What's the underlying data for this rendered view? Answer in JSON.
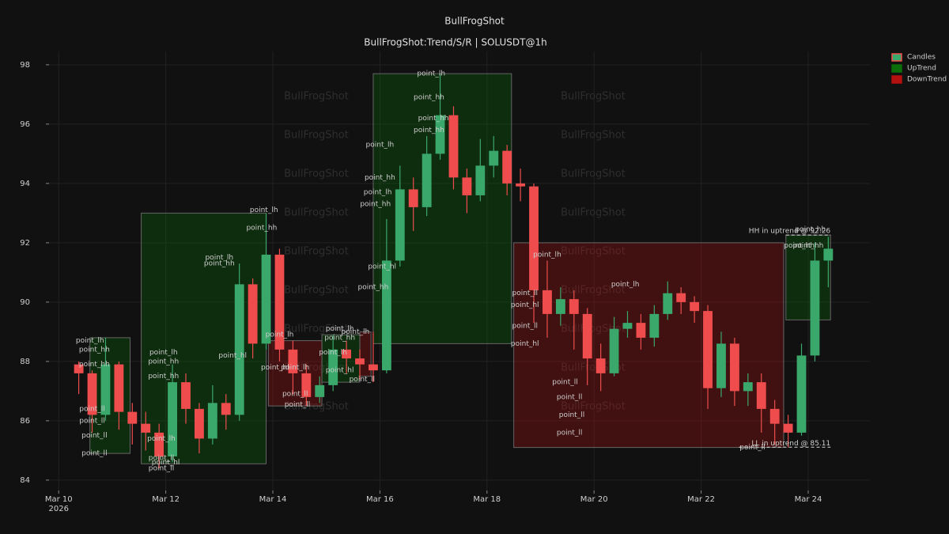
{
  "chart_data": {
    "type": "candlestick",
    "title": "BullFrogShot",
    "subtitle": "BullFrogShot:Trend/S/R | SOLUSDT@1h",
    "watermark": "BullFrogShot",
    "legend_position": "upper right",
    "grid": true,
    "xlim": [
      "2026-03-09T19:40",
      "2026-03-25T03:40"
    ],
    "ylim": [
      83.65,
      98.45
    ],
    "yticks": [
      84,
      86,
      88,
      90,
      92,
      94,
      96,
      98
    ],
    "xticks": [
      {
        "value": "2026-03-10T00:00",
        "label": "Mar 10\n2026"
      },
      {
        "value": "2026-03-12T00:00",
        "label": "Mar 12"
      },
      {
        "value": "2026-03-14T00:00",
        "label": "Mar 14"
      },
      {
        "value": "2026-03-16T00:00",
        "label": "Mar 16"
      },
      {
        "value": "2026-03-18T00:00",
        "label": "Mar 18"
      },
      {
        "value": "2026-03-20T00:00",
        "label": "Mar 20"
      },
      {
        "value": "2026-03-22T00:00",
        "label": "Mar 22"
      },
      {
        "value": "2026-03-24T00:00",
        "label": "Mar 24"
      }
    ],
    "candles": {
      "name": "Candles",
      "up_color": "#3aa86b",
      "down_color": "#ef4d4d",
      "x": [
        "2026-03-10T06:00",
        "2026-03-10T12:00",
        "2026-03-10T18:00",
        "2026-03-11T00:00",
        "2026-03-11T06:00",
        "2026-03-11T12:00",
        "2026-03-11T18:00",
        "2026-03-12T00:00",
        "2026-03-12T06:00",
        "2026-03-12T12:00",
        "2026-03-12T18:00",
        "2026-03-13T00:00",
        "2026-03-13T06:00",
        "2026-03-13T12:00",
        "2026-03-13T18:00",
        "2026-03-14T00:00",
        "2026-03-14T06:00",
        "2026-03-14T12:00",
        "2026-03-14T18:00",
        "2026-03-15T00:00",
        "2026-03-15T06:00",
        "2026-03-15T12:00",
        "2026-03-15T18:00",
        "2026-03-16T00:00",
        "2026-03-16T06:00",
        "2026-03-16T12:00",
        "2026-03-16T18:00",
        "2026-03-17T00:00",
        "2026-03-17T06:00",
        "2026-03-17T12:00",
        "2026-03-17T18:00",
        "2026-03-18T00:00",
        "2026-03-18T06:00",
        "2026-03-18T12:00",
        "2026-03-18T18:00",
        "2026-03-19T00:00",
        "2026-03-19T06:00",
        "2026-03-19T12:00",
        "2026-03-19T18:00",
        "2026-03-20T00:00",
        "2026-03-20T06:00",
        "2026-03-20T12:00",
        "2026-03-20T18:00",
        "2026-03-21T00:00",
        "2026-03-21T06:00",
        "2026-03-21T12:00",
        "2026-03-21T18:00",
        "2026-03-22T00:00",
        "2026-03-22T06:00",
        "2026-03-22T12:00",
        "2026-03-22T18:00",
        "2026-03-23T00:00",
        "2026-03-23T06:00",
        "2026-03-23T12:00",
        "2026-03-23T18:00",
        "2026-03-24T00:00",
        "2026-03-24T06:00"
      ],
      "open": [
        87.9,
        87.6,
        86.2,
        87.9,
        86.3,
        85.9,
        85.6,
        84.8,
        87.3,
        86.4,
        85.4,
        86.6,
        86.2,
        90.6,
        88.6,
        91.6,
        88.4,
        87.6,
        86.8,
        87.2,
        88.4,
        88.1,
        87.9,
        87.7,
        91.4,
        93.8,
        93.2,
        95.0,
        96.3,
        94.2,
        93.6,
        94.6,
        95.1,
        94.0,
        93.9,
        90.4,
        89.6,
        90.1,
        89.6,
        88.1,
        87.6,
        89.1,
        89.3,
        88.8,
        89.6,
        90.3,
        90.0,
        89.7,
        87.1,
        88.6,
        87.0,
        87.3,
        86.4,
        85.9,
        85.6,
        88.2,
        91.4
      ],
      "high": [
        88.0,
        87.7,
        88.8,
        88.0,
        86.6,
        86.3,
        85.9,
        87.9,
        87.6,
        86.6,
        87.2,
        86.9,
        91.3,
        90.8,
        93.0,
        91.8,
        88.7,
        87.9,
        87.5,
        88.9,
        88.7,
        88.4,
        89.0,
        92.8,
        94.6,
        94.2,
        95.6,
        97.7,
        96.6,
        94.5,
        95.5,
        95.6,
        95.3,
        94.5,
        94.0,
        91.4,
        90.5,
        90.4,
        89.8,
        88.6,
        89.5,
        89.7,
        89.6,
        89.9,
        90.7,
        90.5,
        90.2,
        89.9,
        89.0,
        88.8,
        87.6,
        87.6,
        86.7,
        86.2,
        88.6,
        92.0,
        92.2
      ],
      "low": [
        86.9,
        85.6,
        86.0,
        85.7,
        85.2,
        85.0,
        84.4,
        84.6,
        85.9,
        84.9,
        85.2,
        85.7,
        86.0,
        88.1,
        88.4,
        88.0,
        86.9,
        86.5,
        86.6,
        87.0,
        87.6,
        87.4,
        87.3,
        87.6,
        91.2,
        92.4,
        92.9,
        94.8,
        93.8,
        93.0,
        93.4,
        94.2,
        93.6,
        93.4,
        89.3,
        88.8,
        89.2,
        88.4,
        87.2,
        87.0,
        87.5,
        88.8,
        88.4,
        88.5,
        89.4,
        89.6,
        89.3,
        86.4,
        86.8,
        86.5,
        86.5,
        85.6,
        85.2,
        85.1,
        85.5,
        88.0,
        90.5
      ],
      "close": [
        87.6,
        86.2,
        87.9,
        86.3,
        85.9,
        85.6,
        84.8,
        87.3,
        86.4,
        85.4,
        86.6,
        86.2,
        90.6,
        88.6,
        91.6,
        88.4,
        87.6,
        86.8,
        87.2,
        88.4,
        88.1,
        87.9,
        87.7,
        91.4,
        93.8,
        93.2,
        95.0,
        96.3,
        94.2,
        93.6,
        94.6,
        95.1,
        94.0,
        93.9,
        90.4,
        89.6,
        90.1,
        89.6,
        88.1,
        87.6,
        89.1,
        89.3,
        88.8,
        89.6,
        90.3,
        90.0,
        89.7,
        87.1,
        88.6,
        87.0,
        87.3,
        86.4,
        85.9,
        85.6,
        88.2,
        91.4,
        91.8
      ]
    },
    "zone_series": [
      {
        "name": "UpTrend",
        "color": "#0b6e0b",
        "zones": [
          [
            "2026-03-10T14:00",
            "2026-03-11T08:00",
            84.9,
            88.8
          ],
          [
            "2026-03-11T13:00",
            "2026-03-13T21:00",
            84.55,
            93.0
          ],
          [
            "2026-03-14T22:00",
            "2026-03-15T15:00",
            87.3,
            88.9
          ],
          [
            "2026-03-15T21:00",
            "2026-03-18T11:00",
            88.6,
            97.7
          ],
          [
            "2026-03-23T14:00",
            "2026-03-24T10:00",
            89.4,
            92.26
          ]
        ]
      },
      {
        "name": "DownTrend",
        "color": "#b31010",
        "zones": [
          [
            "2026-03-13T22:00",
            "2026-03-14T22:00",
            86.5,
            88.7
          ],
          [
            "2026-03-15T15:00",
            "2026-03-15T20:00",
            87.5,
            89.0
          ],
          [
            "2026-03-18T12:00",
            "2026-03-23T13:00",
            85.1,
            92.0
          ]
        ]
      }
    ],
    "levels": [
      {
        "text": "HH in uptrend @ 92.26",
        "value": 92.26,
        "x": [
          "2026-03-23T14:00",
          "2026-03-24T10:00"
        ]
      },
      {
        "text": "LL in uptrend @ 85.11",
        "value": 85.11,
        "x": [
          "2026-03-22T17:00",
          "2026-03-24T10:00"
        ]
      }
    ],
    "points": [
      {
        "text": "point_lh",
        "x": "2026-03-10T14:00",
        "y": 88.7
      },
      {
        "text": "point_hh",
        "x": "2026-03-10T16:00",
        "y": 88.4
      },
      {
        "text": "point_hh",
        "x": "2026-03-10T16:00",
        "y": 87.9
      },
      {
        "text": "point_ll",
        "x": "2026-03-10T15:00",
        "y": 86.4
      },
      {
        "text": "point_ll",
        "x": "2026-03-10T15:00",
        "y": 86.0
      },
      {
        "text": "point_ll",
        "x": "2026-03-10T16:00",
        "y": 85.5
      },
      {
        "text": "point_ll",
        "x": "2026-03-10T16:00",
        "y": 84.9
      },
      {
        "text": "point_lh",
        "x": "2026-03-11T22:00",
        "y": 85.4
      },
      {
        "text": "point_ll",
        "x": "2026-03-11T22:00",
        "y": 84.75
      },
      {
        "text": "point_hl",
        "x": "2026-03-12T00:00",
        "y": 84.6
      },
      {
        "text": "point_ll",
        "x": "2026-03-11T22:00",
        "y": 84.4
      },
      {
        "text": "point_lh",
        "x": "2026-03-11T23:00",
        "y": 88.3
      },
      {
        "text": "point_hh",
        "x": "2026-03-11T23:00",
        "y": 88.0
      },
      {
        "text": "point_hh",
        "x": "2026-03-11T23:00",
        "y": 87.5
      },
      {
        "text": "point_lh",
        "x": "2026-03-13T00:00",
        "y": 91.5
      },
      {
        "text": "point_hh",
        "x": "2026-03-13T00:00",
        "y": 91.3
      },
      {
        "text": "point_lh",
        "x": "2026-03-13T20:00",
        "y": 93.1
      },
      {
        "text": "point_hh",
        "x": "2026-03-13T19:00",
        "y": 92.5
      },
      {
        "text": "point_hl",
        "x": "2026-03-13T06:00",
        "y": 88.2
      },
      {
        "text": "point_lh",
        "x": "2026-03-14T03:00",
        "y": 88.9
      },
      {
        "text": "point_lh",
        "x": "2026-03-14T10:00",
        "y": 87.8
      },
      {
        "text": "point_hl",
        "x": "2026-03-14T01:00",
        "y": 87.8
      },
      {
        "text": "point_ll",
        "x": "2026-03-14T10:00",
        "y": 86.9
      },
      {
        "text": "point_ll",
        "x": "2026-03-14T11:00",
        "y": 86.55
      },
      {
        "text": "point_lh",
        "x": "2026-03-15T06:00",
        "y": 89.1
      },
      {
        "text": "point_hh",
        "x": "2026-03-15T06:00",
        "y": 88.8
      },
      {
        "text": "point_lh",
        "x": "2026-03-15T13:00",
        "y": 89.0
      },
      {
        "text": "point_hl",
        "x": "2026-03-15T06:00",
        "y": 87.7
      },
      {
        "text": "point_lh",
        "x": "2026-03-15T03:00",
        "y": 88.3
      },
      {
        "text": "point_ll",
        "x": "2026-03-15T16:00",
        "y": 87.4
      },
      {
        "text": "point_hh",
        "x": "2026-03-15T21:00",
        "y": 90.5
      },
      {
        "text": "point_hl",
        "x": "2026-03-16T01:00",
        "y": 91.2
      },
      {
        "text": "point_hh",
        "x": "2026-03-15T22:00",
        "y": 93.3
      },
      {
        "text": "point_lh",
        "x": "2026-03-15T23:00",
        "y": 93.7
      },
      {
        "text": "point_hh",
        "x": "2026-03-16T00:00",
        "y": 94.2
      },
      {
        "text": "point_lh",
        "x": "2026-03-16T00:00",
        "y": 95.3
      },
      {
        "text": "point_lh",
        "x": "2026-03-16T23:00",
        "y": 97.7
      },
      {
        "text": "point_hh",
        "x": "2026-03-16T22:00",
        "y": 96.9
      },
      {
        "text": "point_hh",
        "x": "2026-03-17T00:00",
        "y": 96.2
      },
      {
        "text": "point_hh",
        "x": "2026-03-16T22:00",
        "y": 95.8
      },
      {
        "text": "point_lh",
        "x": "2026-03-19T03:00",
        "y": 91.6
      },
      {
        "text": "point_ll",
        "x": "2026-03-18T17:00",
        "y": 90.3
      },
      {
        "text": "point_hl",
        "x": "2026-03-18T17:00",
        "y": 89.9
      },
      {
        "text": "point_ll",
        "x": "2026-03-18T17:00",
        "y": 89.2
      },
      {
        "text": "point_hl",
        "x": "2026-03-18T17:00",
        "y": 88.6
      },
      {
        "text": "point_lh",
        "x": "2026-03-20T14:00",
        "y": 90.6
      },
      {
        "text": "point_ll",
        "x": "2026-03-19T11:00",
        "y": 87.3
      },
      {
        "text": "point_ll",
        "x": "2026-03-19T13:00",
        "y": 86.8
      },
      {
        "text": "point_ll",
        "x": "2026-03-19T14:00",
        "y": 86.2
      },
      {
        "text": "point_ll",
        "x": "2026-03-19T13:00",
        "y": 85.6
      },
      {
        "text": "point_ll",
        "x": "2026-03-22T23:00",
        "y": 85.1
      },
      {
        "text": "point_hh",
        "x": "2026-03-24T01:00",
        "y": 92.45
      },
      {
        "text": "point_hh",
        "x": "2026-03-24T00:00",
        "y": 91.9
      },
      {
        "text": "point_hh",
        "x": "2026-03-23T20:00",
        "y": 91.9
      }
    ]
  }
}
